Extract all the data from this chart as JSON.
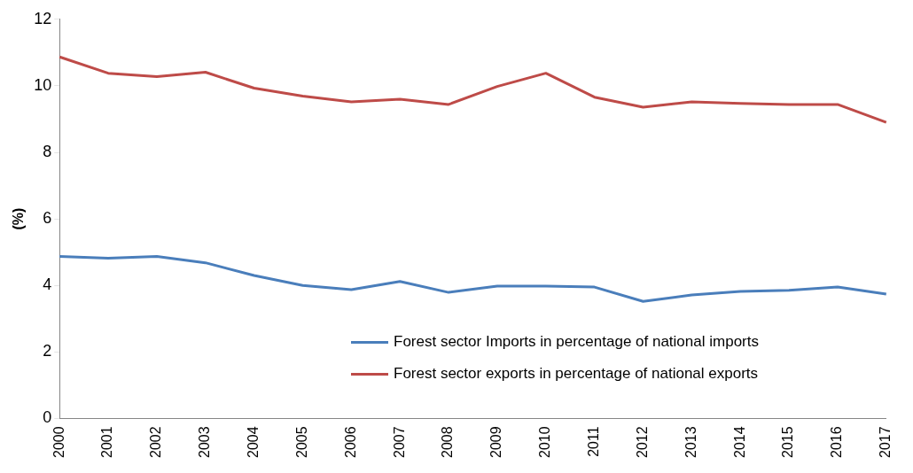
{
  "chart_data": {
    "type": "line",
    "ylabel": "(%)",
    "categories": [
      "2000",
      "2001",
      "2002",
      "2003",
      "2004",
      "2005",
      "2006",
      "2007",
      "2008",
      "2009",
      "2010",
      "2011",
      "2012",
      "2013",
      "2014",
      "2015",
      "2016",
      "2017"
    ],
    "series": [
      {
        "name": "Forest sector Imports in percentage of national imports",
        "color": "#4a7ebb",
        "values": [
          4.87,
          4.82,
          4.87,
          4.68,
          4.3,
          4.0,
          3.87,
          4.12,
          3.79,
          3.98,
          3.98,
          3.95,
          3.52,
          3.71,
          3.82,
          3.85,
          3.95,
          3.74
        ]
      },
      {
        "name": "Forest sector exports in percentage of national exports",
        "color": "#be4b48",
        "values": [
          10.87,
          10.38,
          10.28,
          10.41,
          9.93,
          9.69,
          9.52,
          9.6,
          9.44,
          9.98,
          10.38,
          9.66,
          9.36,
          9.52,
          9.47,
          9.44,
          9.44,
          8.9
        ]
      }
    ],
    "ylim": [
      0,
      12
    ],
    "yticks": [
      0,
      2,
      4,
      6,
      8,
      10,
      12
    ],
    "grid": false,
    "legend": "bottom right",
    "marker": "none",
    "line_style": "solid"
  }
}
